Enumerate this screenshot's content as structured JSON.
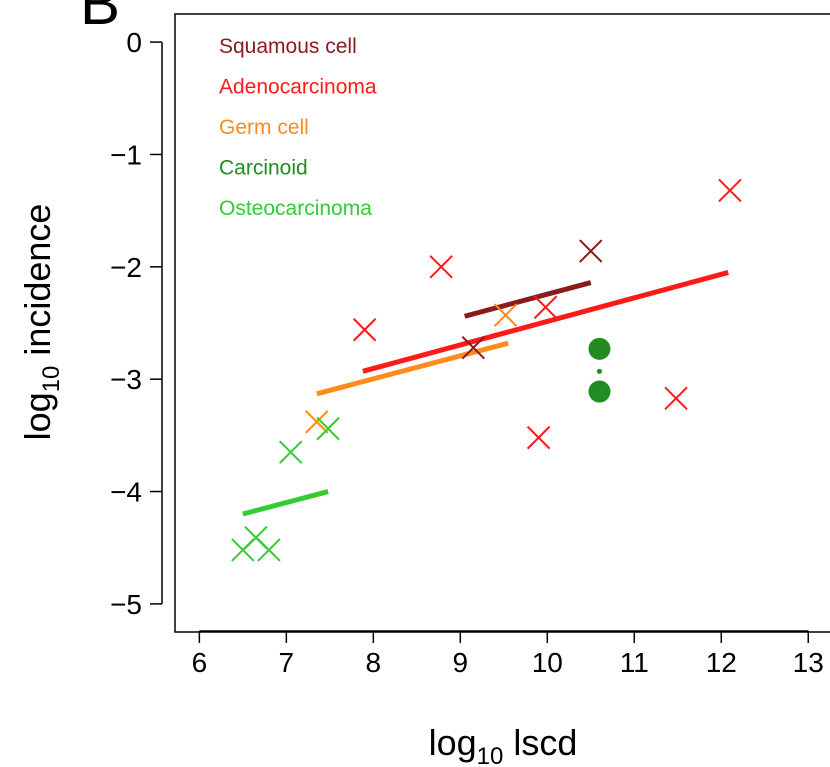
{
  "panel_label": "B",
  "chart_data": {
    "type": "scatter",
    "xlabel": "log10 lscd",
    "ylabel": "log10 incidence",
    "xlim": [
      5.72,
      13.25
    ],
    "ylim": [
      -5.25,
      0.25
    ],
    "x_ticks": [
      6,
      7,
      8,
      9,
      10,
      11,
      12,
      13
    ],
    "y_ticks": [
      0,
      -1,
      -2,
      -3,
      -4,
      -5
    ],
    "x_tick_labels": [
      "6",
      "7",
      "8",
      "9",
      "10",
      "11",
      "12",
      "13"
    ],
    "y_tick_labels": [
      "0",
      "−1",
      "−2",
      "−3",
      "−4",
      "−5"
    ],
    "legend_position": "top-left",
    "series": [
      {
        "name": "Squamous cell",
        "color": "#8b1a1a",
        "marker": "x",
        "points": [
          [
            9.15,
            -2.72
          ],
          [
            10.5,
            -1.86
          ]
        ],
        "fit": [
          [
            9.05,
            -2.44
          ],
          [
            10.5,
            -2.14
          ]
        ]
      },
      {
        "name": "Adenocarcinoma",
        "color": "#ff1a1a",
        "marker": "x",
        "points": [
          [
            7.9,
            -2.56
          ],
          [
            8.78,
            -2.0
          ],
          [
            9.98,
            -2.36
          ],
          [
            9.9,
            -3.52
          ],
          [
            11.48,
            -3.17
          ],
          [
            12.1,
            -1.32
          ]
        ],
        "fit": [
          [
            7.88,
            -2.93
          ],
          [
            12.08,
            -2.05
          ]
        ]
      },
      {
        "name": "Germ cell",
        "color": "#ff8c1a",
        "marker": "x",
        "points": [
          [
            7.35,
            -3.38
          ],
          [
            9.52,
            -2.43
          ]
        ],
        "fit": [
          [
            7.35,
            -3.13
          ],
          [
            9.55,
            -2.68
          ]
        ]
      },
      {
        "name": "Carcinoid",
        "color": "#228b22",
        "marker": "dot",
        "points": [
          [
            10.6,
            -2.73
          ],
          [
            10.6,
            -3.11
          ]
        ],
        "fit": [
          [
            10.6,
            -2.93
          ],
          [
            10.6,
            -2.93
          ]
        ]
      },
      {
        "name": "Osteocarcinoma",
        "color": "#33cc33",
        "marker": "x",
        "points": [
          [
            6.5,
            -4.52
          ],
          [
            6.65,
            -4.41
          ],
          [
            6.8,
            -4.52
          ],
          [
            7.05,
            -3.65
          ],
          [
            7.48,
            -3.44
          ]
        ],
        "fit": [
          [
            6.5,
            -4.2
          ],
          [
            7.48,
            -4.0
          ]
        ]
      }
    ]
  }
}
